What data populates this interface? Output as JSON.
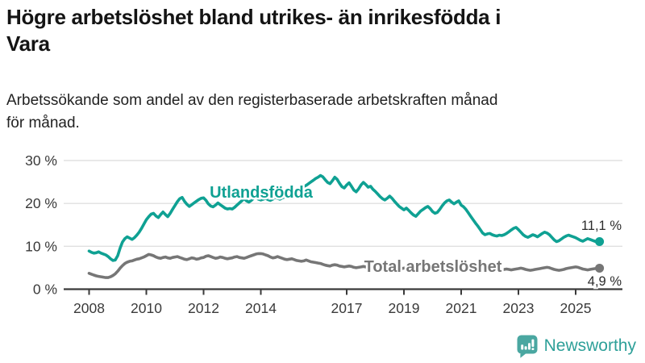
{
  "header": {
    "title_line1": "Högre arbetslöshet bland utrikes- än inrikesfödda i",
    "title_line2": "Vara",
    "subtitle_line1": "Arbetssökande som andel av den registerbaserade arbetskraften månad",
    "subtitle_line2": "för månad."
  },
  "chart_data": {
    "type": "line",
    "x_start": "2008-01",
    "x_end": "2025-11",
    "x_interval": "monthly",
    "grid": "horizontal",
    "x_axis": {
      "tick_years": [
        2008,
        2010,
        2012,
        2014,
        2017,
        2019,
        2021,
        2023,
        2025
      ],
      "tick_labels": [
        "2008",
        "2010",
        "2012",
        "2014",
        "2017",
        "2019",
        "2021",
        "2023",
        "2025"
      ]
    },
    "y_axis": {
      "range": [
        0,
        30
      ],
      "ticks": [
        0,
        10,
        20,
        30
      ],
      "tick_labels": [
        "0 %",
        "10 %",
        "20 %",
        "30 %"
      ]
    },
    "series": [
      {
        "name": "Utlandsfödda",
        "color": "#0fa193",
        "end_value": 11.1,
        "end_label": "11,1 %",
        "values": [
          8.9,
          8.6,
          8.4,
          8.5,
          8.7,
          8.4,
          8.2,
          8.0,
          7.6,
          7.1,
          6.7,
          6.8,
          7.8,
          9.6,
          11.0,
          11.8,
          12.2,
          11.9,
          11.6,
          12.0,
          12.6,
          13.3,
          14.2,
          15.2,
          16.2,
          16.9,
          17.5,
          17.7,
          17.1,
          16.7,
          17.4,
          18.0,
          17.4,
          16.9,
          17.7,
          18.6,
          19.5,
          20.4,
          21.1,
          21.4,
          20.5,
          19.8,
          19.3,
          19.7,
          20.1,
          20.5,
          20.9,
          21.2,
          21.3,
          20.7,
          19.9,
          19.4,
          19.2,
          19.6,
          20.1,
          19.7,
          19.3,
          18.9,
          18.7,
          18.8,
          18.7,
          19.1,
          19.6,
          20.1,
          20.6,
          21.1,
          20.6,
          20.3,
          20.7,
          21.2,
          21.4,
          21.0,
          20.8,
          21.0,
          21.2,
          20.9,
          20.7,
          21.0,
          21.4,
          21.2,
          21.0,
          21.3,
          21.5,
          21.4,
          21.6,
          21.9,
          22.2,
          22.5,
          22.9,
          23.4,
          23.9,
          24.2,
          24.6,
          25.0,
          25.4,
          25.8,
          26.1,
          26.5,
          26.2,
          25.5,
          24.9,
          24.6,
          25.3,
          26.1,
          25.6,
          24.7,
          23.9,
          23.6,
          24.3,
          24.8,
          24.0,
          23.1,
          22.7,
          23.4,
          24.3,
          24.9,
          24.4,
          23.8,
          24.0,
          23.3,
          22.8,
          22.2,
          21.6,
          21.1,
          20.8,
          21.2,
          21.7,
          21.2,
          20.5,
          19.9,
          19.3,
          18.9,
          18.5,
          18.9,
          18.4,
          17.8,
          17.3,
          17.0,
          17.6,
          18.2,
          18.6,
          19.0,
          19.3,
          18.8,
          18.1,
          17.7,
          17.9,
          18.6,
          19.4,
          20.1,
          20.6,
          20.8,
          20.3,
          19.9,
          20.3,
          20.6,
          19.6,
          19.2,
          18.6,
          17.8,
          17.0,
          16.2,
          15.4,
          14.7,
          13.9,
          13.1,
          12.7,
          12.9,
          13.0,
          12.7,
          12.5,
          12.4,
          12.6,
          12.5,
          12.7,
          13.0,
          13.4,
          13.8,
          14.2,
          14.4,
          13.9,
          13.3,
          12.7,
          12.3,
          12.1,
          12.4,
          12.7,
          12.5,
          12.2,
          12.6,
          13.0,
          13.3,
          13.1,
          12.7,
          12.1,
          11.5,
          11.1,
          11.3,
          11.7,
          12.1,
          12.4,
          12.6,
          12.4,
          12.2,
          12.0,
          11.7,
          11.4,
          11.2,
          11.5,
          11.8,
          11.6,
          11.4,
          11.2,
          11.0,
          11.1
        ]
      },
      {
        "name": "Total arbetslöshet",
        "color": "#767676",
        "end_value": 4.9,
        "end_label": "4,9 %",
        "values": [
          3.7,
          3.5,
          3.3,
          3.1,
          3.0,
          2.9,
          2.8,
          2.7,
          2.7,
          2.9,
          3.2,
          3.6,
          4.2,
          4.9,
          5.5,
          6.0,
          6.3,
          6.5,
          6.6,
          6.8,
          7.0,
          7.1,
          7.3,
          7.5,
          7.8,
          8.1,
          8.0,
          7.8,
          7.5,
          7.3,
          7.2,
          7.4,
          7.5,
          7.3,
          7.2,
          7.4,
          7.5,
          7.6,
          7.4,
          7.2,
          7.0,
          6.9,
          7.1,
          7.3,
          7.2,
          7.0,
          7.1,
          7.3,
          7.4,
          7.7,
          7.8,
          7.6,
          7.4,
          7.2,
          7.3,
          7.5,
          7.4,
          7.2,
          7.1,
          7.2,
          7.3,
          7.5,
          7.6,
          7.4,
          7.3,
          7.2,
          7.4,
          7.6,
          7.8,
          8.0,
          8.2,
          8.3,
          8.3,
          8.2,
          8.0,
          7.8,
          7.5,
          7.3,
          7.4,
          7.6,
          7.4,
          7.2,
          7.0,
          6.9,
          7.0,
          7.1,
          6.9,
          6.7,
          6.6,
          6.5,
          6.6,
          6.8,
          6.6,
          6.4,
          6.3,
          6.2,
          6.1,
          6.0,
          5.8,
          5.6,
          5.5,
          5.4,
          5.6,
          5.7,
          5.6,
          5.4,
          5.3,
          5.2,
          5.3,
          5.4,
          5.3,
          5.1,
          5.0,
          5.1,
          5.2,
          5.3,
          5.2,
          5.0,
          4.9,
          5.0,
          5.1,
          5.2,
          5.0,
          4.9,
          4.8,
          4.9,
          5.0,
          5.1,
          5.0,
          4.8,
          4.7,
          4.8,
          4.9,
          5.0,
          4.9,
          4.8,
          4.7,
          4.8,
          4.9,
          5.0,
          4.9,
          4.8,
          4.9,
          5.0,
          5.1,
          5.3,
          5.5,
          5.8,
          6.0,
          6.1,
          6.1,
          6.0,
          5.9,
          5.8,
          5.7,
          5.8,
          5.9,
          5.8,
          5.6,
          5.4,
          5.2,
          5.1,
          5.0,
          4.9,
          4.8,
          4.7,
          4.6,
          4.5,
          4.6,
          4.7,
          4.6,
          4.5,
          4.4,
          4.5,
          4.6,
          4.7,
          4.6,
          4.5,
          4.6,
          4.7,
          4.8,
          4.9,
          4.8,
          4.6,
          4.5,
          4.4,
          4.5,
          4.6,
          4.7,
          4.8,
          4.9,
          5.0,
          5.1,
          5.0,
          4.8,
          4.6,
          4.5,
          4.4,
          4.5,
          4.6,
          4.8,
          4.9,
          5.0,
          5.1,
          5.2,
          5.1,
          4.9,
          4.7,
          4.6,
          4.5,
          4.6,
          4.7,
          4.8,
          4.8,
          4.9
        ]
      }
    ],
    "colors": {
      "grid": "#e0e0e0",
      "axis": "#3a3a3a",
      "tick_text": "#3a3a3a",
      "value_label_text": "#2b2b2b"
    }
  },
  "branding": {
    "name": "Newsworthy",
    "color": "#2ea099",
    "icon": "bar-chart-speech-bubble",
    "icon_color": "#4aa7a1"
  }
}
